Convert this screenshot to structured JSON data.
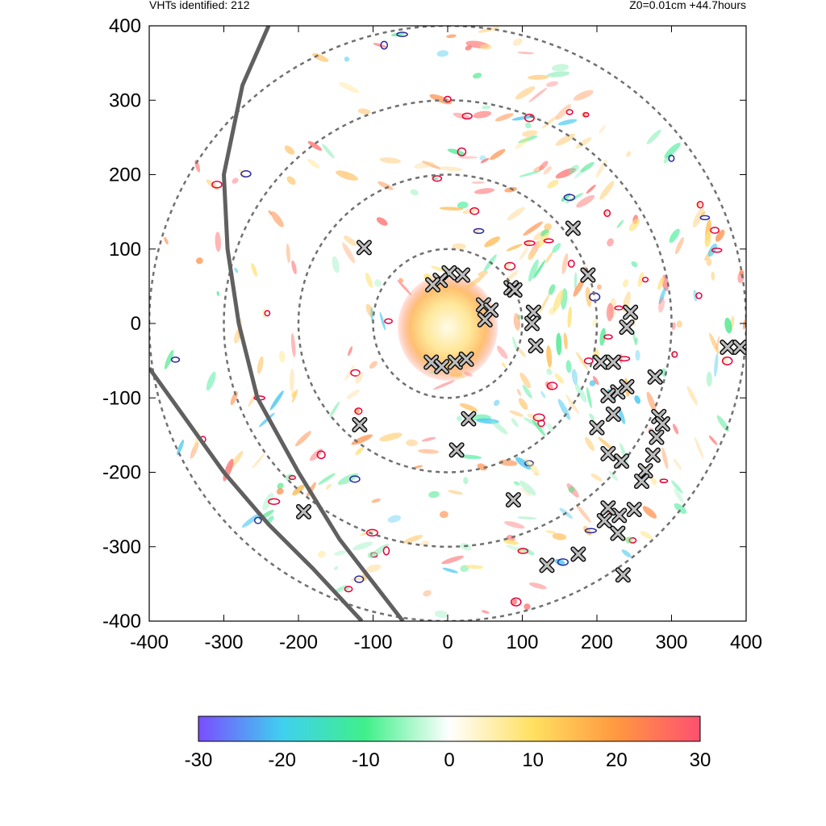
{
  "header": {
    "left_text": "VHTs identified: 212",
    "right_text": "Z0=0.01cm  +44.7hours"
  },
  "colors": {
    "ring": "#707070",
    "track": "#606060",
    "contour_red": "#e8003a",
    "contour_blue": "#2a2aa0",
    "marker_fill": "#bdbdbd",
    "marker_edge": "#000000"
  },
  "chart_data": {
    "type": "scatter",
    "title": "",
    "xlabel": "",
    "ylabel": "",
    "xlim": [
      -400,
      400
    ],
    "ylim": [
      -400,
      400
    ],
    "xticks": [
      -400,
      -300,
      -200,
      -100,
      0,
      100,
      200,
      300,
      400
    ],
    "yticks": [
      -400,
      -300,
      -200,
      -100,
      0,
      100,
      200,
      300,
      400
    ],
    "grid": false,
    "colorbar": {
      "min": -30,
      "max": 30,
      "ticks": [
        -30,
        -20,
        -10,
        0,
        10,
        20,
        30
      ],
      "stops": [
        "#7a4dff",
        "#3fd0f0",
        "#3ff08a",
        "#ffffff",
        "#ffe060",
        "#ff9840",
        "#ff5070"
      ]
    },
    "rings_radius": [
      100,
      200,
      300,
      400
    ],
    "tracks": [
      [
        [
          -240,
          400
        ],
        [
          -275,
          320
        ],
        [
          -300,
          200
        ],
        [
          -295,
          100
        ],
        [
          -280,
          0
        ],
        [
          -255,
          -100
        ],
        [
          -200,
          -200
        ],
        [
          -145,
          -290
        ],
        [
          -60,
          -400
        ]
      ],
      [
        [
          -400,
          -60
        ],
        [
          -350,
          -130
        ],
        [
          -300,
          -200
        ],
        [
          -240,
          -270
        ],
        [
          -180,
          -330
        ],
        [
          -115,
          -400
        ]
      ]
    ],
    "series": [
      {
        "values": [
          [
            -112,
            102
          ],
          [
            -118,
            -136
          ],
          [
            -193,
            -253
          ],
          [
            12,
            -170
          ],
          [
            2,
            68
          ],
          [
            -10,
            58
          ],
          [
            -20,
            52
          ],
          [
            20,
            65
          ],
          [
            -22,
            -52
          ],
          [
            -8,
            -58
          ],
          [
            10,
            -52
          ],
          [
            25,
            -48
          ],
          [
            48,
            25
          ],
          [
            58,
            18
          ],
          [
            50,
            5
          ],
          [
            85,
            48
          ],
          [
            90,
            45
          ],
          [
            115,
            15
          ],
          [
            113,
            0
          ],
          [
            118,
            -30
          ],
          [
            28,
            -128
          ],
          [
            88,
            -237
          ],
          [
            133,
            -325
          ],
          [
            175,
            -310
          ],
          [
            168,
            128
          ],
          [
            188,
            65
          ],
          [
            205,
            -52
          ],
          [
            222,
            -52
          ],
          [
            245,
            15
          ],
          [
            240,
            -5
          ],
          [
            228,
            -92
          ],
          [
            240,
            -85
          ],
          [
            215,
            -97
          ],
          [
            222,
            -122
          ],
          [
            200,
            -140
          ],
          [
            215,
            -175
          ],
          [
            233,
            -185
          ],
          [
            278,
            -72
          ],
          [
            283,
            -125
          ],
          [
            288,
            -135
          ],
          [
            280,
            -153
          ],
          [
            275,
            -177
          ],
          [
            265,
            -198
          ],
          [
            260,
            -212
          ],
          [
            250,
            -250
          ],
          [
            230,
            -258
          ],
          [
            215,
            -248
          ],
          [
            210,
            -265
          ],
          [
            228,
            -282
          ],
          [
            235,
            -338
          ],
          [
            375,
            -32
          ],
          [
            392,
            -32
          ]
        ]
      }
    ]
  }
}
